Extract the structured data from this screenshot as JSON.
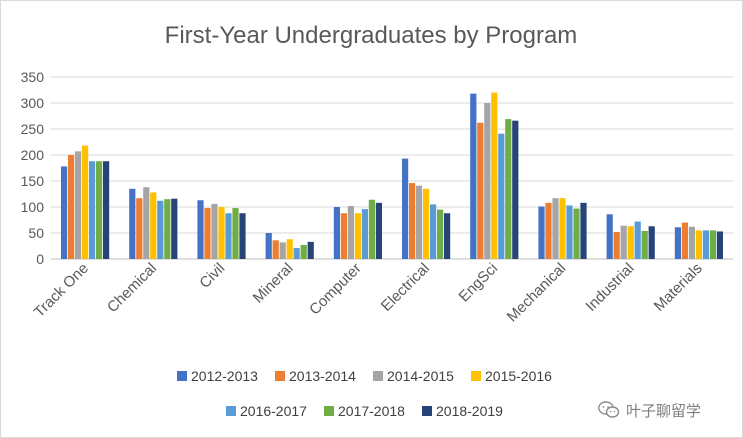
{
  "chart_data": {
    "type": "bar",
    "title": "First-Year Undergraduates by Program",
    "xlabel": "",
    "ylabel": "",
    "ylim": [
      0,
      350
    ],
    "yticks": [
      0,
      50,
      100,
      150,
      200,
      250,
      300,
      350
    ],
    "grid": true,
    "legend_position": "bottom",
    "categories": [
      "Track One",
      "Chemical",
      "Civil",
      "Mineral",
      "Computer",
      "Electrical",
      "EngSci",
      "Mechanical",
      "Industrial",
      "Materials"
    ],
    "series": [
      {
        "name": "2012-2013",
        "color": "#4472c4",
        "values": [
          178,
          135,
          113,
          50,
          100,
          193,
          318,
          101,
          86,
          61
        ]
      },
      {
        "name": "2013-2014",
        "color": "#ed7d31",
        "values": [
          200,
          117,
          98,
          36,
          88,
          146,
          262,
          108,
          52,
          70
        ]
      },
      {
        "name": "2014-2015",
        "color": "#a5a5a5",
        "values": [
          207,
          138,
          106,
          32,
          102,
          141,
          300,
          117,
          64,
          62
        ]
      },
      {
        "name": "2015-2016",
        "color": "#ffc000",
        "values": [
          218,
          128,
          100,
          38,
          88,
          135,
          320,
          117,
          63,
          55
        ]
      },
      {
        "name": "2016-2017",
        "color": "#5b9bd5",
        "values": [
          188,
          112,
          88,
          21,
          96,
          105,
          241,
          103,
          72,
          55
        ]
      },
      {
        "name": "2017-2018",
        "color": "#70ad47",
        "values": [
          188,
          115,
          98,
          27,
          114,
          95,
          269,
          97,
          54,
          55
        ]
      },
      {
        "name": "2018-2019",
        "color": "#264478",
        "values": [
          188,
          116,
          88,
          33,
          108,
          88,
          266,
          108,
          63,
          53
        ]
      }
    ]
  },
  "watermark": {
    "text": "叶子聊留学",
    "icon": "wechat-icon"
  }
}
